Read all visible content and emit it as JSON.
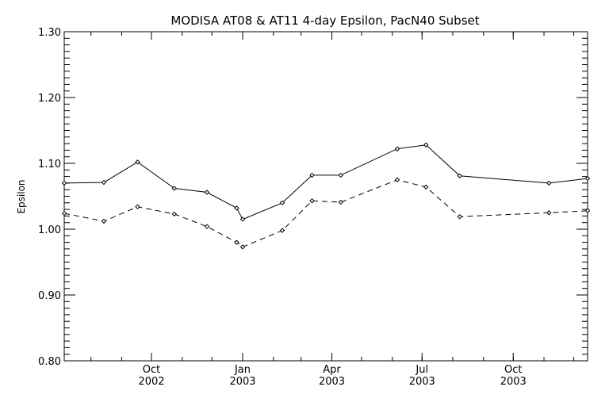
{
  "chart_data": {
    "type": "line",
    "title": "MODISA AT08 & AT11 4-day Epsilon, PacN40 Subset",
    "xlabel": "",
    "ylabel": "Epsilon",
    "ylim": [
      0.8,
      1.3
    ],
    "xlim": [
      "2002-07-05",
      "2003-12-15"
    ],
    "y_ticks": [
      "0.80",
      "0.90",
      "1.00",
      "1.10",
      "1.20",
      "1.30"
    ],
    "x_ticks": [
      {
        "date": "2002-10-01",
        "month": "Oct",
        "year": "2002"
      },
      {
        "date": "2003-01-01",
        "month": "Jan",
        "year": "2003"
      },
      {
        "date": "2003-04-01",
        "month": "Apr",
        "year": "2003"
      },
      {
        "date": "2003-07-01",
        "month": "Jul",
        "year": "2003"
      },
      {
        "date": "2003-10-01",
        "month": "Oct",
        "year": "2003"
      }
    ],
    "grid": false,
    "series": [
      {
        "style": "solid",
        "x": [
          "2002-07-05",
          "2002-08-14",
          "2002-09-17",
          "2002-10-24",
          "2002-11-26",
          "2002-12-26",
          "2003-01-01",
          "2003-02-10",
          "2003-03-12",
          "2003-04-10",
          "2003-06-06",
          "2003-07-05",
          "2003-08-08",
          "2003-11-06",
          "2003-12-15"
        ],
        "values": [
          1.07,
          1.071,
          1.102,
          1.062,
          1.056,
          1.032,
          1.015,
          1.04,
          1.082,
          1.082,
          1.122,
          1.128,
          1.081,
          1.07,
          1.077
        ]
      },
      {
        "style": "dashed",
        "x": [
          "2002-07-05",
          "2002-08-14",
          "2002-09-17",
          "2002-10-24",
          "2002-11-26",
          "2002-12-26",
          "2003-01-01",
          "2003-02-10",
          "2003-03-12",
          "2003-04-10",
          "2003-06-06",
          "2003-07-05",
          "2003-08-08",
          "2003-11-06",
          "2003-12-15"
        ],
        "values": [
          1.024,
          1.012,
          1.034,
          1.023,
          1.004,
          0.98,
          0.973,
          0.998,
          1.043,
          1.041,
          1.075,
          1.064,
          1.019,
          1.025,
          1.028
        ]
      }
    ]
  }
}
